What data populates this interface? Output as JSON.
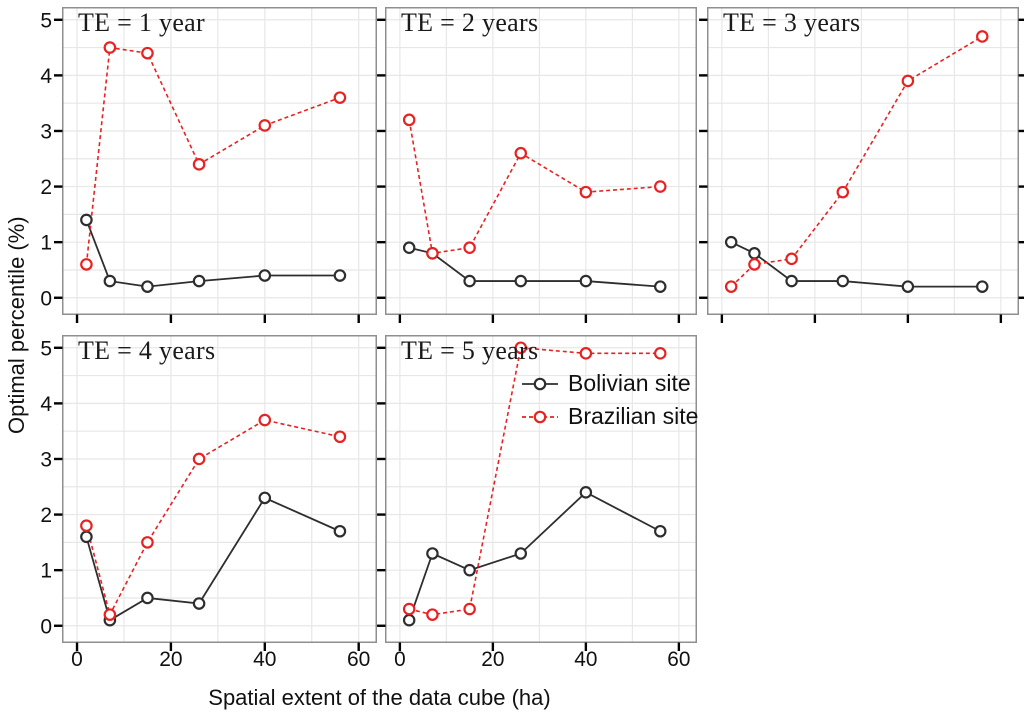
{
  "figure": {
    "x_axis_title": "Spatial extent of the data cube (ha)",
    "y_axis_title": "Optimal percentile (%)"
  },
  "legend": {
    "items": [
      {
        "label": "Bolivian site",
        "series": "bolivian"
      },
      {
        "label": "Brazilian site",
        "series": "brazilian"
      }
    ]
  },
  "series_style": {
    "bolivian": {
      "color": "#2e2e2e",
      "line": "solid"
    },
    "brazilian": {
      "color": "#e62222",
      "line": "dashed"
    }
  },
  "colors": {
    "grid": "#e7e7e7",
    "panel_border": "#8f8f8f",
    "tick": "#000000",
    "text": "#111111"
  },
  "chart_config": {
    "x_ticks": [
      0,
      20,
      40,
      60
    ],
    "y_ticks": [
      0,
      1,
      2,
      3,
      4,
      5
    ],
    "xlim": [
      -3.2,
      63.9
    ],
    "ylim": [
      -0.31,
      5.23
    ],
    "x_grid_step": 10,
    "y_grid_step": 0.5,
    "grid": true,
    "legend_position": "inside-panel-5-top-right"
  },
  "chart_data": [
    {
      "type": "line",
      "title": "TE = 1 year",
      "x": [
        2,
        7,
        15,
        26,
        40,
        56
      ],
      "series": [
        {
          "name": "Bolivian site",
          "key": "bolivian",
          "values": [
            1.4,
            0.3,
            0.2,
            0.3,
            0.4,
            0.4
          ]
        },
        {
          "name": "Brazilian site",
          "key": "brazilian",
          "values": [
            0.6,
            4.5,
            4.4,
            2.4,
            3.1,
            3.6
          ]
        }
      ]
    },
    {
      "type": "line",
      "title": "TE = 2 years",
      "x": [
        2,
        7,
        15,
        26,
        40,
        56
      ],
      "series": [
        {
          "name": "Bolivian site",
          "key": "bolivian",
          "values": [
            0.9,
            0.8,
            0.3,
            0.3,
            0.3,
            0.2
          ]
        },
        {
          "name": "Brazilian site",
          "key": "brazilian",
          "values": [
            3.2,
            0.8,
            0.9,
            2.6,
            1.9,
            2.0
          ]
        }
      ]
    },
    {
      "type": "line",
      "title": "TE = 3 years",
      "x": [
        2,
        7,
        15,
        26,
        40,
        56
      ],
      "series": [
        {
          "name": "Bolivian site",
          "key": "bolivian",
          "values": [
            1.0,
            0.8,
            0.3,
            0.3,
            0.2,
            0.2
          ]
        },
        {
          "name": "Brazilian site",
          "key": "brazilian",
          "values": [
            0.2,
            0.6,
            0.7,
            1.9,
            3.9,
            4.7
          ]
        }
      ]
    },
    {
      "type": "line",
      "title": "TE = 4 years",
      "x": [
        2,
        7,
        15,
        26,
        40,
        56
      ],
      "series": [
        {
          "name": "Bolivian site",
          "key": "bolivian",
          "values": [
            1.6,
            0.1,
            0.5,
            0.4,
            2.3,
            1.7
          ]
        },
        {
          "name": "Brazilian site",
          "key": "brazilian",
          "values": [
            1.8,
            0.2,
            1.5,
            3.0,
            3.7,
            3.4
          ]
        }
      ]
    },
    {
      "type": "line",
      "title": "TE = 5 years",
      "x": [
        2,
        7,
        15,
        26,
        40,
        56
      ],
      "series": [
        {
          "name": "Bolivian site",
          "key": "bolivian",
          "values": [
            0.1,
            1.3,
            1.0,
            1.3,
            2.4,
            1.7
          ]
        },
        {
          "name": "Brazilian site",
          "key": "brazilian",
          "values": [
            0.3,
            0.2,
            0.3,
            5.0,
            4.9,
            4.9
          ]
        }
      ]
    }
  ]
}
